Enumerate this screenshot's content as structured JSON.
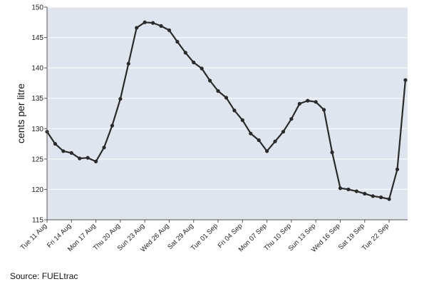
{
  "chart_data": {
    "type": "line",
    "title": "",
    "xlabel": "",
    "ylabel": "cents per litre",
    "ylim": [
      115,
      150
    ],
    "yticks": [
      115,
      120,
      125,
      130,
      135,
      140,
      145,
      150
    ],
    "grid": "horizontal",
    "x_tick_labels": [
      "Tue 11 Aug",
      "Fri 14 Aug",
      "Mon 17 Aug",
      "Thu 20 Aug",
      "Sun 23 Aug",
      "Wed 26 Aug",
      "Sat 29 Aug",
      "Tue 01 Sep",
      "Fri 04 Sep",
      "Mon 07 Sep",
      "Thu 10 Sep",
      "Sun 13 Sep",
      "Wed 16 Sep",
      "Sat 19 Sep",
      "Tue 22 Sep"
    ],
    "x_tick_every_days": 3,
    "x_first": "Tue 11 Aug",
    "x_last": "Thu 24 Sep",
    "values": [
      129.5,
      127.5,
      126.3,
      126.0,
      125.1,
      125.2,
      124.6,
      126.9,
      130.5,
      134.9,
      140.7,
      146.6,
      147.5,
      147.4,
      146.9,
      146.2,
      144.3,
      142.5,
      140.9,
      139.9,
      137.9,
      136.2,
      135.1,
      133.0,
      131.4,
      129.2,
      128.1,
      126.3,
      127.9,
      129.5,
      131.6,
      134.1,
      134.6,
      134.4,
      133.1,
      126.1,
      120.2,
      120.0,
      119.7,
      119.3,
      118.9,
      118.7,
      118.4,
      123.3,
      138.0
    ],
    "series_color": "#2a2a2a",
    "plot_background": "#dfe5ef"
  },
  "source": "Source: FUELtrac"
}
